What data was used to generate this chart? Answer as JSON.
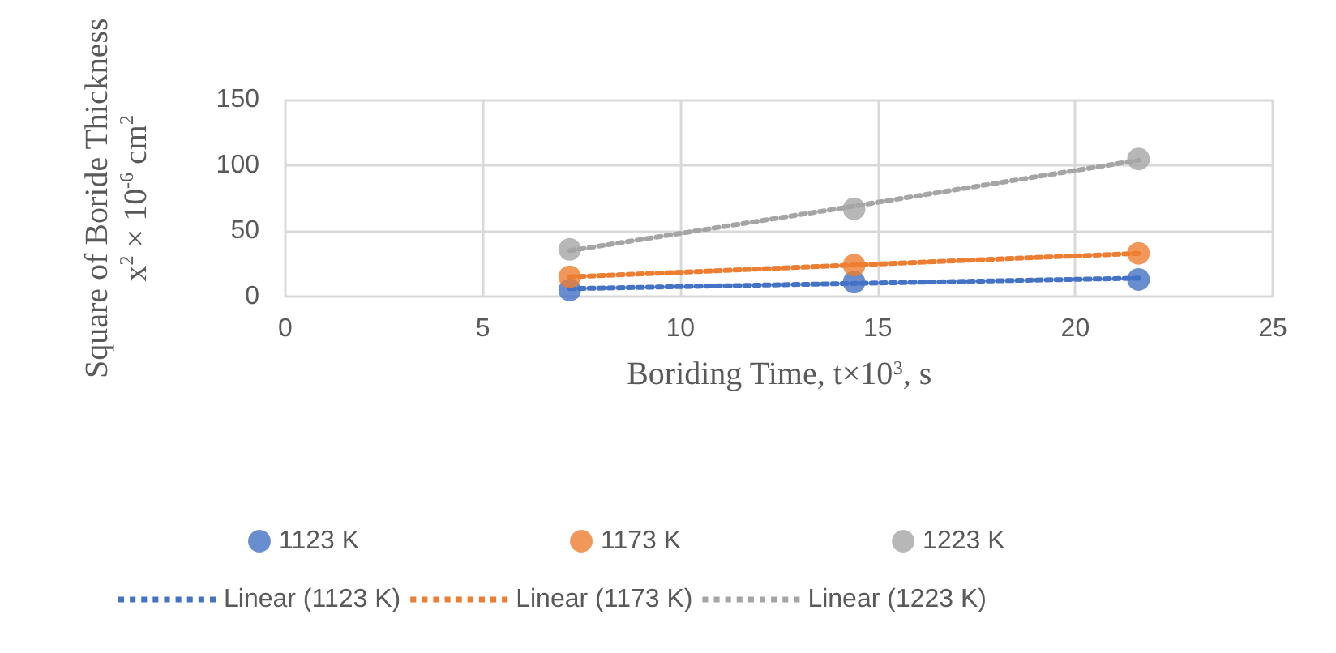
{
  "chart_data": {
    "type": "scatter",
    "xlabel": "Boriding Time, t×10$^{3}$, s",
    "ylabel": "Square of Boride Thickness\nx$^{2}$ × 10$^{-6}$ cm$^{2}$",
    "x": [
      7.2,
      14.4,
      21.6
    ],
    "series": [
      {
        "name": "1123 K",
        "color": "#4472c4",
        "values": [
          5,
          11,
          13
        ],
        "marker": "circle"
      },
      {
        "name": "1173 K",
        "color": "#ed7d31",
        "values": [
          15,
          24,
          33
        ],
        "marker": "circle"
      },
      {
        "name": "1223 K",
        "color": "#a5a5a5",
        "values": [
          36,
          67,
          105
        ],
        "marker": "circle"
      },
      {
        "name": "Linear (1123 K)",
        "type": "line",
        "color": "#4472c4",
        "values": [
          6,
          10,
          14
        ],
        "marker": "none",
        "line_style": "dotted"
      },
      {
        "name": "Linear (1173 K)",
        "type": "line",
        "color": "#ed7d31",
        "values": [
          15,
          24,
          33
        ],
        "marker": "none",
        "line_style": "dotted"
      },
      {
        "name": "Linear (1223 K)",
        "type": "line",
        "color": "#a5a5a5",
        "values": [
          35,
          69,
          104
        ],
        "marker": "none",
        "line_style": "dotted"
      }
    ],
    "xlim": [
      0,
      25
    ],
    "xticks": [
      0,
      5,
      10,
      15,
      20,
      25
    ],
    "ylim": [
      0,
      150
    ],
    "yticks": [
      0,
      50,
      100,
      150
    ],
    "grid": true,
    "legend": "bottom"
  }
}
